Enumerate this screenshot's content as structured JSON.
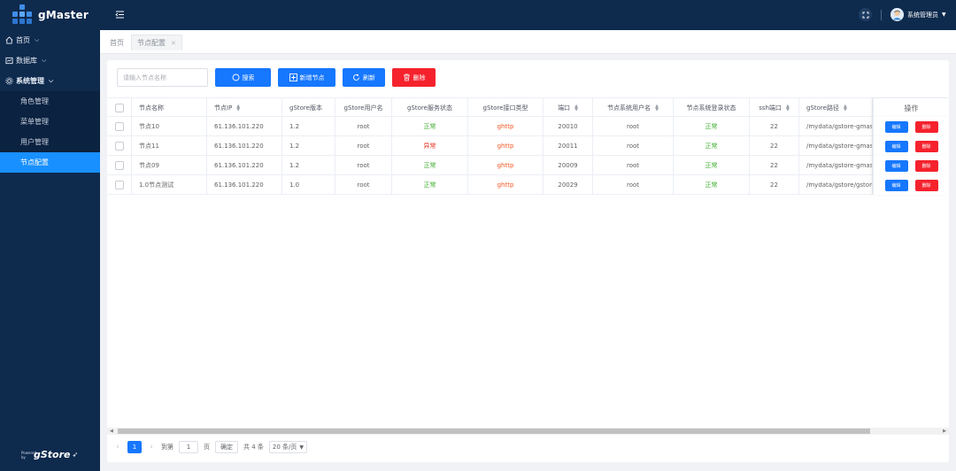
{
  "app": {
    "name": "gMaster"
  },
  "sidebar": {
    "menu": [
      {
        "label": "首页",
        "icon": "home-icon"
      },
      {
        "label": "数据库",
        "icon": "database-icon"
      },
      {
        "label": "系统管理",
        "icon": "system-settings-icon"
      }
    ],
    "submenu": [
      "角色管理",
      "菜单管理",
      "用户管理",
      "节点配置"
    ],
    "active": "节点配置",
    "powered_by": "Powered by",
    "powered_brand": "gStore"
  },
  "topbar": {
    "user_name": "系统管理员"
  },
  "tabs": {
    "home": "首页",
    "current": "节点配置"
  },
  "toolbar": {
    "search_placeholder": "请输入节点名称",
    "search_btn": "搜索",
    "add_btn": "新增节点",
    "refresh_btn": "刷新",
    "delete_btn": "删除"
  },
  "table": {
    "headers": [
      "节点名称",
      "节点IP",
      "gStore版本",
      "gStore用户名",
      "gStore服务状态",
      "gStore接口类型",
      "端口",
      "节点系统用户名",
      "节点系统登录状态",
      "ssh端口",
      "gStore路径",
      "操作"
    ],
    "rows": [
      {
        "name": "节点10",
        "ip": "61.136.101.220",
        "version": "1.2",
        "user": "root",
        "status": "正常",
        "iface": "ghttp",
        "port": "20010",
        "sys_user": "root",
        "login": "正常",
        "ssh": "22",
        "path": "/mydata/gstore-gmaster"
      },
      {
        "name": "节点11",
        "ip": "61.136.101.220",
        "version": "1.2",
        "user": "root",
        "status": "异常",
        "iface": "ghttp",
        "port": "20011",
        "sys_user": "root",
        "login": "正常",
        "ssh": "22",
        "path": "/mydata/gstore-gmaster"
      },
      {
        "name": "节点09",
        "ip": "61.136.101.220",
        "version": "1.2",
        "user": "root",
        "status": "正常",
        "iface": "ghttp",
        "port": "20009",
        "sys_user": "root",
        "login": "正常",
        "ssh": "22",
        "path": "/mydata/gstore-gmaster"
      },
      {
        "name": "1.0节点测试",
        "ip": "61.136.101.220",
        "version": "1.0",
        "user": "root",
        "status": "正常",
        "iface": "ghttp",
        "port": "20029",
        "sys_user": "root",
        "login": "正常",
        "ssh": "22",
        "path": "/mydata/gstore/gstore"
      }
    ],
    "edit_label": "编辑",
    "delete_label": "删除"
  },
  "pagination": {
    "current": "1",
    "goto_label": "到第",
    "goto_value": "1",
    "page_unit": "页",
    "confirm": "确定",
    "total": "共 4 条",
    "page_size": "20 条/页"
  },
  "colors": {
    "sidebar_bg": "#0e2a4d",
    "accent": "#1677ff",
    "danger": "#f5222d",
    "ok": "#3fae2f",
    "ghttp": "#f05a28"
  }
}
